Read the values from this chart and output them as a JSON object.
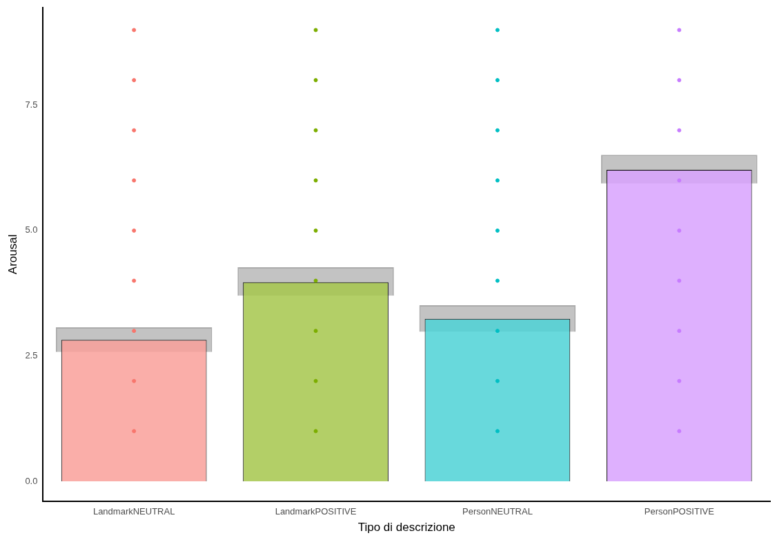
{
  "chart_data": {
    "type": "bar",
    "xlabel": "Tipo di descrizione",
    "ylabel": "Arousal",
    "categories": [
      "LandmarkNEUTRAL",
      "LandmarkPOSITIVE",
      "PersonNEUTRAL",
      "PersonPOSITIVE"
    ],
    "ylim": [
      -0.4,
      9.45
    ],
    "yticks": [
      {
        "value": 0,
        "label": "0.0"
      },
      {
        "value": 2.5,
        "label": "2.5"
      },
      {
        "value": 5,
        "label": "5.0"
      },
      {
        "value": 7.5,
        "label": "7.5"
      }
    ],
    "grid": false,
    "legend": false,
    "series": [
      {
        "values": [
          2.82,
          3.97,
          3.24,
          6.21
        ],
        "colors": [
          "#f9a09a",
          "#a6c74c",
          "#4dd2d6",
          "#d8a2fe"
        ]
      },
      {
        "type": "bar",
        "color": "#aaaaaa",
        "base": [
          2.58,
          3.7,
          2.98,
          5.94
        ],
        "values": [
          0.49,
          0.57,
          0.53,
          0.57
        ]
      },
      {
        "type": "scatter",
        "color": "#f8766d",
        "x": [
          "LandmarkNEUTRAL",
          "LandmarkNEUTRAL",
          "LandmarkNEUTRAL",
          "LandmarkNEUTRAL",
          "LandmarkNEUTRAL",
          "LandmarkNEUTRAL",
          "LandmarkNEUTRAL",
          "LandmarkNEUTRAL",
          "LandmarkNEUTRAL"
        ],
        "values": [
          1,
          2,
          3,
          4,
          5,
          6,
          7,
          8,
          9
        ]
      },
      {
        "type": "scatter",
        "color": "#7cae00",
        "x": [
          "LandmarkPOSITIVE",
          "LandmarkPOSITIVE",
          "LandmarkPOSITIVE",
          "LandmarkPOSITIVE",
          "LandmarkPOSITIVE",
          "LandmarkPOSITIVE",
          "LandmarkPOSITIVE",
          "LandmarkPOSITIVE",
          "LandmarkPOSITIVE"
        ],
        "values": [
          1,
          2,
          3,
          4,
          5,
          6,
          7,
          8,
          9
        ]
      },
      {
        "type": "scatter",
        "color": "#00bfc4",
        "x": [
          "PersonNEUTRAL",
          "PersonNEUTRAL",
          "PersonNEUTRAL",
          "PersonNEUTRAL",
          "PersonNEUTRAL",
          "PersonNEUTRAL",
          "PersonNEUTRAL",
          "PersonNEUTRAL",
          "PersonNEUTRAL"
        ],
        "values": [
          1,
          2,
          3,
          4,
          5,
          6,
          7,
          8,
          9
        ]
      },
      {
        "type": "scatter",
        "color": "#c77cff",
        "x": [
          "PersonPOSITIVE",
          "PersonPOSITIVE",
          "PersonPOSITIVE",
          "PersonPOSITIVE",
          "PersonPOSITIVE",
          "PersonPOSITIVE",
          "PersonPOSITIVE",
          "PersonPOSITIVE",
          "PersonPOSITIVE"
        ],
        "values": [
          1,
          2,
          3,
          4,
          5,
          6,
          7,
          8,
          9
        ]
      }
    ]
  }
}
